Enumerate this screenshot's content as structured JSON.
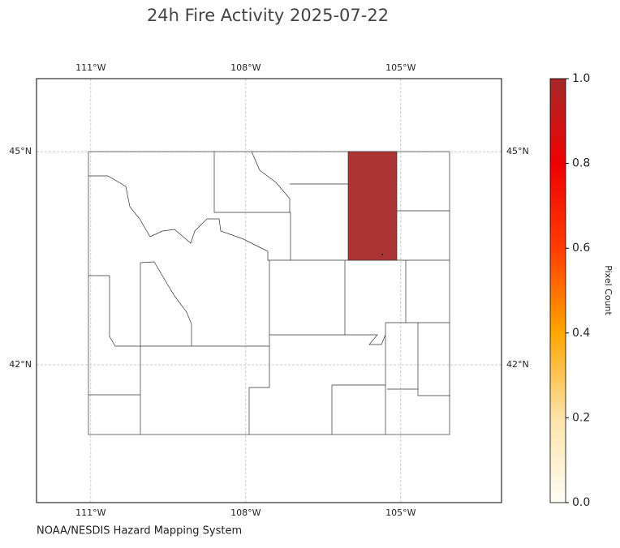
{
  "title": "24h Fire Activity 2025-07-22",
  "map": {
    "xlim": [
      -112.05,
      -103.05
    ],
    "ylim": [
      40.06,
      46.03
    ],
    "xticks": [
      {
        "value": -111,
        "label": "111°W"
      },
      {
        "value": -108,
        "label": "108°W"
      },
      {
        "value": -105,
        "label": "105°W"
      }
    ],
    "yticks": [
      {
        "value": 45,
        "label": "45°N"
      },
      {
        "value": 42,
        "label": "42°N"
      }
    ],
    "grid": true,
    "fire_values": [
      1
    ]
  },
  "colorbar": {
    "label": "Pixel Count",
    "lim": [
      0,
      1
    ],
    "ticks": [
      {
        "value": 0,
        "label": "0.0"
      },
      {
        "value": 0.2,
        "label": "0.2"
      },
      {
        "value": 0.4,
        "label": "0.4"
      },
      {
        "value": 0.6,
        "label": "0.6"
      },
      {
        "value": 0.8,
        "label": "0.8"
      },
      {
        "value": 1,
        "label": "1.0"
      }
    ]
  },
  "source": "NOAA/NESDIS Hazard Mapping System"
}
